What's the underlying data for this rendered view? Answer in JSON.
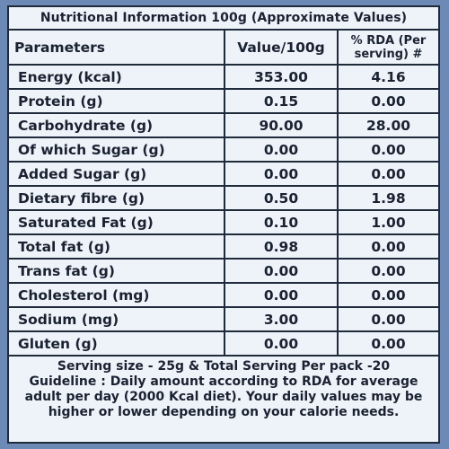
{
  "title": "Nutritional Information 100g (Approximate Values)",
  "columns": [
    "Parameters",
    "Value/100g",
    "% RDA (Per serving) #"
  ],
  "rows": [
    {
      "name": "Energy (kcal)",
      "value": "353.00",
      "rda": "4.16"
    },
    {
      "name": "Protein (g)",
      "value": "0.15",
      "rda": "0.00"
    },
    {
      "name": "Carbohydrate (g)",
      "value": "90.00",
      "rda": "28.00"
    },
    {
      "name": "Of which Sugar (g)",
      "value": "0.00",
      "rda": "0.00"
    },
    {
      "name": "Added Sugar (g)",
      "value": "0.00",
      "rda": "0.00"
    },
    {
      "name": "Dietary fibre (g)",
      "value": "0.50",
      "rda": "1.98"
    },
    {
      "name": "Saturated Fat (g)",
      "value": "0.10",
      "rda": "1.00"
    },
    {
      "name": "Total fat (g)",
      "value": "0.98",
      "rda": "0.00"
    },
    {
      "name": "Trans fat (g)",
      "value": "0.00",
      "rda": "0.00"
    },
    {
      "name": "Cholesterol (mg)",
      "value": "0.00",
      "rda": "0.00"
    },
    {
      "name": "Sodium (mg)",
      "value": "3.00",
      "rda": "0.00"
    },
    {
      "name": "Gluten (g)",
      "value": "0.00",
      "rda": "0.00"
    }
  ],
  "footer": {
    "serving": "Serving size - 25g & Total Serving Per pack -20",
    "guideline": "Guideline : Daily amount according to RDA for average adult per day (2000 Kcal diet). Your daily values may be higher or lower depending on your calorie needs."
  }
}
